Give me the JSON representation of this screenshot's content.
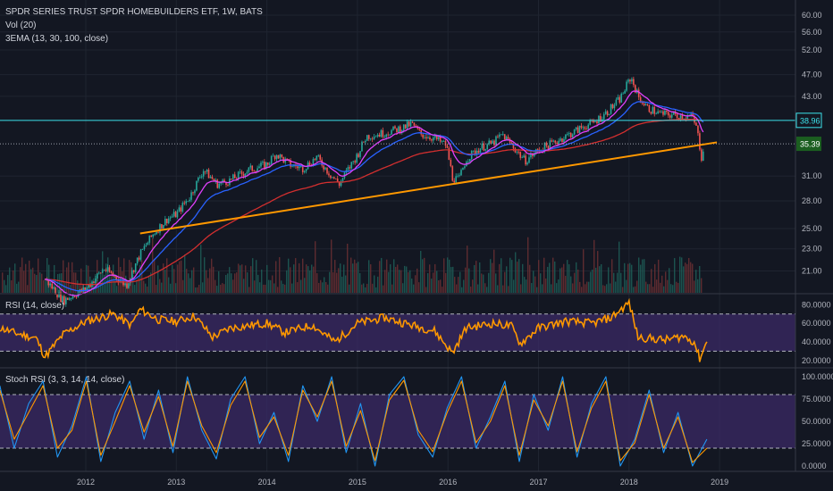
{
  "chart_data": [
    {
      "type": "candlestick",
      "title": "SPDR SERIES TRUST SPDR HOMEBUILDERS ETF, 1W, BATS",
      "indicators": [
        "Vol (20)",
        "3EMA (13, 30, 100, close)"
      ],
      "price_ticks": [
        "60.00",
        "56.00",
        "52.00",
        "47.00",
        "43.00",
        "38.96",
        "35.39",
        "31.00",
        "28.00",
        "25.00",
        "23.00",
        "21.00"
      ],
      "x_ticks": [
        "2012",
        "2013",
        "2014",
        "2015",
        "2016",
        "2017",
        "2018",
        "2019"
      ],
      "horizontal_line": 38.96,
      "last_price": 35.39,
      "price_points": [
        {
          "t": 2011.55,
          "p": 20.3
        },
        {
          "t": 2011.75,
          "p": 18.6
        },
        {
          "t": 2012.0,
          "p": 19.5
        },
        {
          "t": 2012.2,
          "p": 21.2
        },
        {
          "t": 2012.45,
          "p": 19.8
        },
        {
          "t": 2012.6,
          "p": 22.5
        },
        {
          "t": 2012.75,
          "p": 24.5
        },
        {
          "t": 2012.9,
          "p": 26.0
        },
        {
          "t": 2013.0,
          "p": 26.5
        },
        {
          "t": 2013.15,
          "p": 28.5
        },
        {
          "t": 2013.3,
          "p": 31.8
        },
        {
          "t": 2013.45,
          "p": 30.0
        },
        {
          "t": 2013.6,
          "p": 30.5
        },
        {
          "t": 2013.8,
          "p": 31.8
        },
        {
          "t": 2014.0,
          "p": 32.5
        },
        {
          "t": 2014.1,
          "p": 34.0
        },
        {
          "t": 2014.25,
          "p": 32.5
        },
        {
          "t": 2014.4,
          "p": 32.0
        },
        {
          "t": 2014.55,
          "p": 33.5
        },
        {
          "t": 2014.7,
          "p": 31.2
        },
        {
          "t": 2014.8,
          "p": 30.0
        },
        {
          "t": 2015.0,
          "p": 33.8
        },
        {
          "t": 2015.1,
          "p": 36.5
        },
        {
          "t": 2015.3,
          "p": 37.0
        },
        {
          "t": 2015.5,
          "p": 37.8
        },
        {
          "t": 2015.6,
          "p": 38.4
        },
        {
          "t": 2015.7,
          "p": 36.8
        },
        {
          "t": 2015.85,
          "p": 36.2
        },
        {
          "t": 2015.98,
          "p": 35.2
        },
        {
          "t": 2016.05,
          "p": 30.8
        },
        {
          "t": 2016.12,
          "p": 30.5
        },
        {
          "t": 2016.2,
          "p": 33.2
        },
        {
          "t": 2016.35,
          "p": 34.8
        },
        {
          "t": 2016.5,
          "p": 35.5
        },
        {
          "t": 2016.6,
          "p": 36.8
        },
        {
          "t": 2016.75,
          "p": 34.5
        },
        {
          "t": 2016.85,
          "p": 33.0
        },
        {
          "t": 2017.0,
          "p": 34.5
        },
        {
          "t": 2017.2,
          "p": 35.8
        },
        {
          "t": 2017.4,
          "p": 37.2
        },
        {
          "t": 2017.5,
          "p": 38.0
        },
        {
          "t": 2017.6,
          "p": 38.5
        },
        {
          "t": 2017.75,
          "p": 40.2
        },
        {
          "t": 2017.9,
          "p": 42.5
        },
        {
          "t": 2018.02,
          "p": 46.5
        },
        {
          "t": 2018.1,
          "p": 43.0
        },
        {
          "t": 2018.2,
          "p": 41.0
        },
        {
          "t": 2018.35,
          "p": 40.0
        },
        {
          "t": 2018.5,
          "p": 39.8
        },
        {
          "t": 2018.62,
          "p": 39.6
        },
        {
          "t": 2018.7,
          "p": 39.5
        },
        {
          "t": 2018.75,
          "p": 37.5
        },
        {
          "t": 2018.8,
          "p": 33.5
        },
        {
          "t": 2018.83,
          "p": 35.39
        }
      ],
      "trendline": {
        "from": {
          "t": 2012.6,
          "p": 24.5
        },
        "to": {
          "t": 2018.97,
          "p": 35.6
        }
      }
    },
    {
      "type": "line",
      "title": "RSI (14, close)",
      "y_ticks": [
        "80.0000",
        "60.0000",
        "40.0000",
        "20.0000"
      ],
      "band": [
        30,
        70
      ],
      "points": [
        {
          "t": 2011.0,
          "v": 57
        },
        {
          "t": 2011.2,
          "v": 50
        },
        {
          "t": 2011.45,
          "v": 44
        },
        {
          "t": 2011.55,
          "v": 24
        },
        {
          "t": 2011.75,
          "v": 48
        },
        {
          "t": 2012.0,
          "v": 62
        },
        {
          "t": 2012.3,
          "v": 70
        },
        {
          "t": 2012.5,
          "v": 58
        },
        {
          "t": 2012.6,
          "v": 75
        },
        {
          "t": 2012.8,
          "v": 64
        },
        {
          "t": 2013.0,
          "v": 62
        },
        {
          "t": 2013.2,
          "v": 68
        },
        {
          "t": 2013.4,
          "v": 45
        },
        {
          "t": 2013.6,
          "v": 55
        },
        {
          "t": 2014.0,
          "v": 60
        },
        {
          "t": 2014.2,
          "v": 50
        },
        {
          "t": 2014.5,
          "v": 58
        },
        {
          "t": 2014.75,
          "v": 40
        },
        {
          "t": 2015.0,
          "v": 60
        },
        {
          "t": 2015.3,
          "v": 66
        },
        {
          "t": 2015.6,
          "v": 58
        },
        {
          "t": 2015.85,
          "v": 52
        },
        {
          "t": 2016.05,
          "v": 28
        },
        {
          "t": 2016.2,
          "v": 55
        },
        {
          "t": 2016.5,
          "v": 60
        },
        {
          "t": 2016.7,
          "v": 57
        },
        {
          "t": 2016.8,
          "v": 38
        },
        {
          "t": 2017.0,
          "v": 55
        },
        {
          "t": 2017.3,
          "v": 62
        },
        {
          "t": 2017.6,
          "v": 60
        },
        {
          "t": 2017.8,
          "v": 66
        },
        {
          "t": 2018.0,
          "v": 82
        },
        {
          "t": 2018.1,
          "v": 45
        },
        {
          "t": 2018.4,
          "v": 42
        },
        {
          "t": 2018.6,
          "v": 46
        },
        {
          "t": 2018.72,
          "v": 40
        },
        {
          "t": 2018.78,
          "v": 22
        },
        {
          "t": 2018.86,
          "v": 40
        }
      ]
    },
    {
      "type": "line",
      "title": "Stoch RSI (3, 3, 14, 14, close)",
      "y_ticks": [
        "100.0000",
        "75.0000",
        "50.0000",
        "25.0000",
        "0.0000"
      ],
      "band": [
        20,
        80
      ],
      "series": [
        {
          "values": [
            90,
            20,
            70,
            95,
            10,
            45,
            100,
            5,
            60,
            95,
            30,
            85,
            15,
            100,
            40,
            8,
            75,
            100,
            25,
            60,
            5,
            90,
            50,
            100,
            15,
            70,
            0,
            80,
            100,
            35,
            10,
            65,
            100,
            20,
            55,
            95,
            5,
            80,
            40,
            100,
            10,
            70,
            100,
            0,
            30,
            85,
            15,
            60,
            0,
            30
          ]
        },
        {
          "values": [
            85,
            30,
            60,
            90,
            20,
            40,
            95,
            12,
            50,
            90,
            38,
            78,
            22,
            95,
            45,
            15,
            68,
            95,
            32,
            55,
            12,
            85,
            55,
            95,
            22,
            62,
            6,
            74,
            96,
            40,
            16,
            60,
            95,
            26,
            50,
            90,
            12,
            74,
            45,
            95,
            16,
            65,
            95,
            6,
            26,
            80,
            20,
            55,
            4,
            20
          ]
        }
      ]
    }
  ],
  "colors": {
    "background": "#131722",
    "up": "#26a69a",
    "down": "#ef5350",
    "trendline": "#ff9800",
    "cyan_line": "#3ce2ea",
    "ema_fast": "#e040fb",
    "ema_mid": "#2962ff",
    "ema_slow": "#d32f2f",
    "rsi_line": "#ff9800",
    "band_fill": "#3b2a66",
    "stoch_k": "#2196f3",
    "stoch_d": "#ff9800"
  }
}
